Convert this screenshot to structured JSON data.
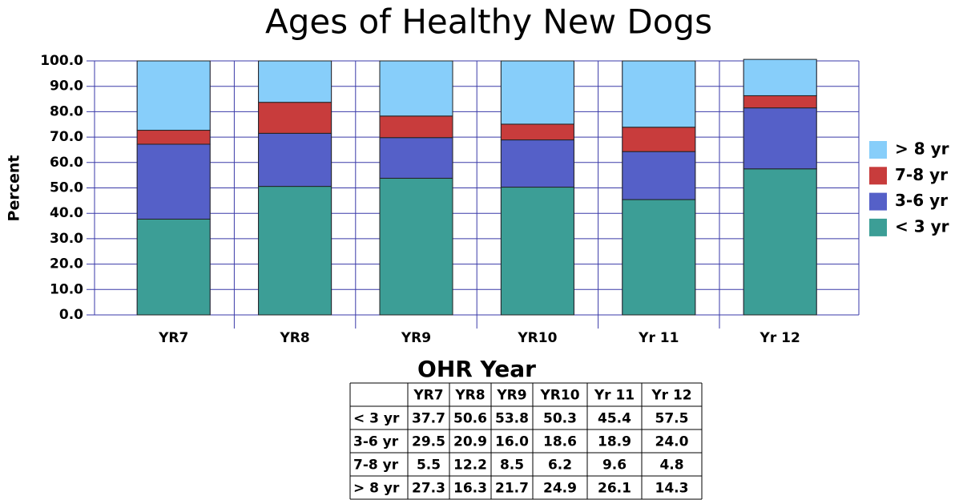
{
  "chart_data": {
    "type": "stacked_bar",
    "title": "Ages of Healthy New Dogs",
    "x_label": "OHR Year",
    "y_label": "Percent",
    "categories": [
      "YR7",
      "YR8",
      "YR9",
      "YR10",
      "Yr 11",
      "Yr 12"
    ],
    "series": [
      {
        "name": "< 3 yr",
        "color": "#3c9e96",
        "values": [
          37.7,
          50.6,
          53.8,
          50.3,
          45.4,
          57.5
        ],
        "value_labels": [
          "37.7",
          "50.6",
          "53.8",
          "50.3",
          "45.4",
          "57.5"
        ]
      },
      {
        "name": "3-6 yr",
        "color": "#5560c8",
        "values": [
          29.5,
          20.9,
          16.0,
          18.6,
          18.9,
          24.0
        ],
        "value_labels": [
          "29.5",
          "20.9",
          "16.0",
          "18.6",
          "18.9",
          "24.0"
        ]
      },
      {
        "name": "7-8 yr",
        "color": "#c83c3c",
        "values": [
          5.5,
          12.2,
          8.5,
          6.2,
          9.6,
          4.8
        ],
        "value_labels": [
          "5.5",
          "12.2",
          "8.5",
          "6.2",
          "9.6",
          "4.8"
        ]
      },
      {
        "name": "> 8 yr",
        "color": "#87cefa",
        "values": [
          27.3,
          16.3,
          21.7,
          24.9,
          26.1,
          14.3
        ],
        "value_labels": [
          "27.3",
          "16.3",
          "21.7",
          "24.9",
          "26.1",
          "14.3"
        ]
      }
    ],
    "ylim": [
      0,
      100
    ],
    "yticks": [
      {
        "value": 0,
        "label": "0.0"
      },
      {
        "value": 10,
        "label": "10.0"
      },
      {
        "value": 20,
        "label": "20.0"
      },
      {
        "value": 30,
        "label": "30.0"
      },
      {
        "value": 40,
        "label": "40.0"
      },
      {
        "value": 50,
        "label": "50.0"
      },
      {
        "value": 60,
        "label": "60.0"
      },
      {
        "value": 70,
        "label": "70.0"
      },
      {
        "value": 80,
        "label": "80.0"
      },
      {
        "value": 90,
        "label": "90.0"
      },
      {
        "value": 100,
        "label": "100.0"
      }
    ],
    "grid": true,
    "legend": "right"
  }
}
